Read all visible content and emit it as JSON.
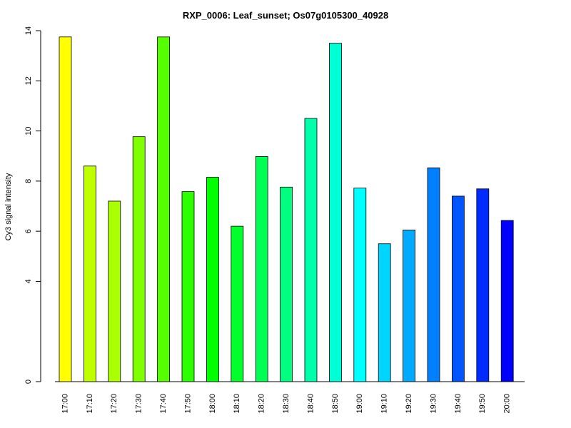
{
  "chart_data": {
    "type": "bar",
    "title": "RXP_0006: Leaf_sunset; Os07g0105300_40928",
    "xlabel": "",
    "ylabel": "Cy3 signal intensity",
    "ylim": [
      0,
      14
    ],
    "yticks": [
      0,
      4,
      6,
      8,
      10,
      12,
      14
    ],
    "grid": false,
    "categories": [
      "17:00",
      "17:10",
      "17:20",
      "17:30",
      "17:40",
      "17:50",
      "18:00",
      "18:10",
      "18:20",
      "18:30",
      "18:40",
      "18:50",
      "19:00",
      "19:10",
      "19:20",
      "19:30",
      "19:40",
      "19:50",
      "20:00"
    ],
    "values": [
      13.75,
      8.6,
      7.2,
      9.77,
      13.75,
      7.58,
      8.15,
      6.2,
      8.98,
      7.76,
      10.5,
      13.5,
      7.72,
      5.5,
      6.05,
      8.53,
      7.4,
      7.69,
      6.43
    ],
    "colors": [
      "#FFFF00",
      "#BFFF00",
      "#AAFF00",
      "#80FF00",
      "#55FF00",
      "#2BFF00",
      "#00FF00",
      "#00FF2B",
      "#00FF55",
      "#00FF80",
      "#00FFAA",
      "#00FFD5",
      "#00FFFF",
      "#00D5FF",
      "#00AAFF",
      "#0080FF",
      "#0055FF",
      "#002BFF",
      "#0000FF"
    ]
  }
}
